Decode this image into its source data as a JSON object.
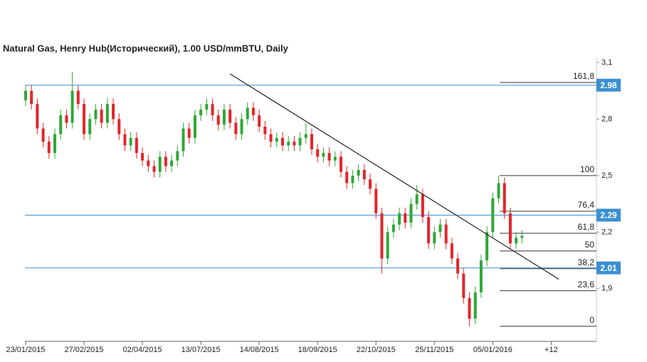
{
  "chart_data": {
    "type": "candlestick",
    "title": "Natural Gas, Henry Hub(Исторический), 1.00 USD/mmBTU, Daily",
    "up_color": "#2ea836",
    "down_color": "#e3252b",
    "open": [
      2.9,
      2.95,
      2.88,
      2.75,
      2.68,
      2.62,
      2.72,
      2.82,
      2.78,
      2.95,
      2.88,
      2.72,
      2.8,
      2.85,
      2.78,
      2.88,
      2.8,
      2.72,
      2.66,
      2.7,
      2.62,
      2.58,
      2.55,
      2.52,
      2.6,
      2.55,
      2.58,
      2.63,
      2.75,
      2.7,
      2.82,
      2.85,
      2.88,
      2.82,
      2.77,
      2.85,
      2.78,
      2.72,
      2.8,
      2.86,
      2.82,
      2.76,
      2.72,
      2.68,
      2.7,
      2.66,
      2.68,
      2.66,
      2.7,
      2.72,
      2.64,
      2.6,
      2.62,
      2.58,
      2.6,
      2.52,
      2.46,
      2.5,
      2.53,
      2.48,
      2.43,
      2.3,
      2.06,
      2.2,
      2.24,
      2.3,
      2.25,
      2.35,
      2.4,
      2.28,
      2.14,
      2.2,
      2.24,
      2.14,
      2.06,
      1.98,
      1.85,
      1.74,
      1.88,
      2.05,
      2.2,
      2.38,
      2.46,
      2.3,
      2.14,
      2.17
    ],
    "high": [
      2.98,
      2.98,
      2.91,
      2.78,
      2.71,
      2.75,
      2.85,
      2.85,
      3.05,
      2.98,
      2.91,
      2.83,
      2.88,
      2.88,
      2.91,
      2.91,
      2.83,
      2.75,
      2.73,
      2.73,
      2.65,
      2.61,
      2.58,
      2.63,
      2.63,
      2.61,
      2.66,
      2.78,
      2.78,
      2.85,
      2.88,
      2.91,
      2.91,
      2.85,
      2.88,
      2.88,
      2.81,
      2.83,
      2.89,
      2.89,
      2.85,
      2.79,
      2.75,
      2.73,
      2.73,
      2.71,
      2.71,
      2.73,
      2.78,
      2.75,
      2.67,
      2.65,
      2.65,
      2.63,
      2.63,
      2.55,
      2.53,
      2.56,
      2.56,
      2.51,
      2.46,
      2.33,
      2.23,
      2.27,
      2.33,
      2.33,
      2.38,
      2.45,
      2.43,
      2.31,
      2.23,
      2.27,
      2.27,
      2.17,
      2.09,
      2.01,
      1.88,
      1.91,
      2.08,
      2.23,
      2.41,
      2.5,
      2.49,
      2.33,
      2.2,
      2.21
    ],
    "low": [
      2.87,
      2.85,
      2.72,
      2.65,
      2.59,
      2.59,
      2.69,
      2.75,
      2.75,
      2.85,
      2.69,
      2.69,
      2.77,
      2.75,
      2.75,
      2.77,
      2.69,
      2.63,
      2.63,
      2.59,
      2.55,
      2.52,
      2.49,
      2.49,
      2.52,
      2.52,
      2.55,
      2.6,
      2.67,
      2.67,
      2.79,
      2.82,
      2.79,
      2.74,
      2.74,
      2.75,
      2.69,
      2.69,
      2.77,
      2.79,
      2.73,
      2.69,
      2.65,
      2.65,
      2.63,
      2.63,
      2.63,
      2.63,
      2.67,
      2.61,
      2.57,
      2.57,
      2.55,
      2.55,
      2.49,
      2.43,
      2.43,
      2.47,
      2.45,
      2.4,
      2.27,
      1.98,
      2.03,
      2.17,
      2.21,
      2.22,
      2.22,
      2.32,
      2.25,
      2.11,
      2.11,
      2.17,
      2.11,
      2.03,
      1.95,
      1.82,
      1.7,
      1.71,
      1.85,
      2.02,
      2.17,
      2.35,
      2.27,
      2.11,
      2.11,
      2.14
    ],
    "close": [
      2.95,
      2.88,
      2.75,
      2.68,
      2.62,
      2.72,
      2.82,
      2.78,
      2.95,
      2.88,
      2.72,
      2.8,
      2.85,
      2.78,
      2.88,
      2.8,
      2.72,
      2.66,
      2.7,
      2.62,
      2.58,
      2.55,
      2.52,
      2.6,
      2.55,
      2.58,
      2.63,
      2.75,
      2.7,
      2.82,
      2.85,
      2.88,
      2.82,
      2.77,
      2.85,
      2.78,
      2.72,
      2.8,
      2.86,
      2.82,
      2.76,
      2.72,
      2.68,
      2.7,
      2.66,
      2.68,
      2.66,
      2.7,
      2.72,
      2.64,
      2.6,
      2.62,
      2.58,
      2.6,
      2.52,
      2.46,
      2.5,
      2.53,
      2.48,
      2.43,
      2.3,
      2.06,
      2.2,
      2.24,
      2.3,
      2.25,
      2.35,
      2.4,
      2.28,
      2.14,
      2.2,
      2.24,
      2.14,
      2.06,
      1.98,
      1.85,
      1.74,
      1.88,
      2.05,
      2.2,
      2.38,
      2.46,
      2.3,
      2.14,
      2.17,
      2.18
    ],
    "xlim": [
      0,
      98
    ],
    "xticks": [
      {
        "value": 0,
        "label": "23/01/2015"
      },
      {
        "value": 10,
        "label": "27/02/2015"
      },
      {
        "value": 20,
        "label": "02/04/2015"
      },
      {
        "value": 30,
        "label": "13/07/2015"
      },
      {
        "value": 40,
        "label": "14/08/2015"
      },
      {
        "value": 50,
        "label": "18/09/2015"
      },
      {
        "value": 60,
        "label": "22/10/2015"
      },
      {
        "value": 70,
        "label": "25/11/2015"
      },
      {
        "value": 80,
        "label": "05/01/2016"
      },
      {
        "value": 90,
        "label": "+12"
      }
    ],
    "ylim": [
      1.62,
      3.13
    ],
    "yticks": [
      {
        "value": 3.1,
        "label": "3,1"
      },
      {
        "value": 2.8,
        "label": "2,8"
      },
      {
        "value": 2.5,
        "label": "2,5"
      },
      {
        "value": 2.2,
        "label": "2,2"
      },
      {
        "value": 1.9,
        "label": "1,9"
      }
    ],
    "level_color": "#3b8fd2",
    "levels": [
      2.98,
      2.29,
      2.01
    ],
    "fib_start_x": 81.2,
    "fib_levels": [
      {
        "label": "161,8",
        "price": 2.994
      },
      {
        "label": "100",
        "price": 2.5
      },
      {
        "label": "76,4",
        "price": 2.311
      },
      {
        "label": "61,8",
        "price": 2.194
      },
      {
        "label": "50",
        "price": 2.1
      },
      {
        "label": "38,2",
        "price": 2.006
      },
      {
        "label": "23,6",
        "price": 1.889
      },
      {
        "label": "0",
        "price": 1.7
      }
    ],
    "trendline": {
      "x": [
        35,
        91.3
      ],
      "y": [
        3.04,
        1.95
      ]
    }
  }
}
